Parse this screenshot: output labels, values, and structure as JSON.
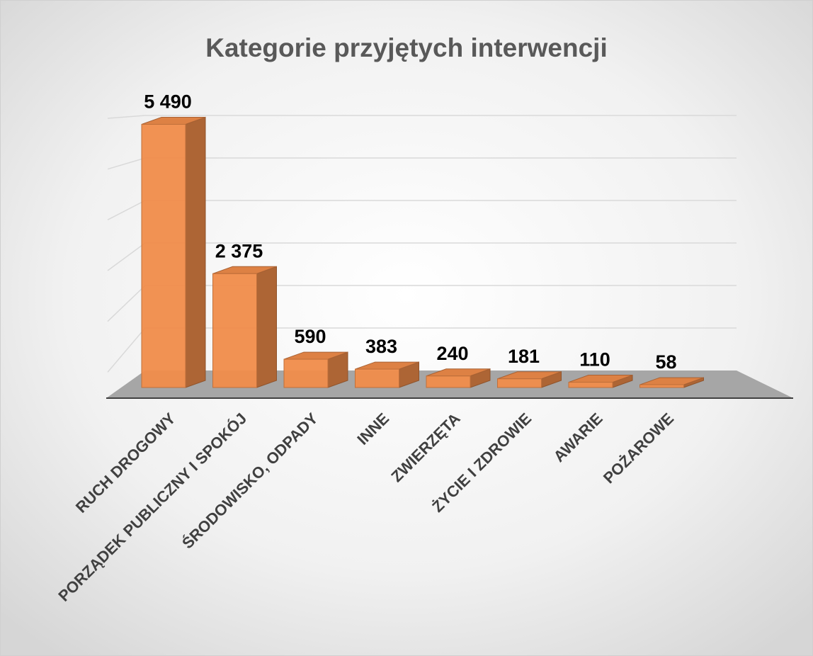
{
  "chart_data": {
    "type": "bar3d",
    "title": "Kategorie przyjętych interwencji",
    "categories": [
      "RUCH DROGOWY",
      "PORZĄDEK PUBLICZNY I SPOKÓJ",
      "ŚRODOWISKO, ODPADY",
      "INNE",
      "ZWIERZĘTA",
      "ŻYCIE I ZDROWIE",
      "AWARIE",
      "POŻAROWE"
    ],
    "values": [
      5490,
      2375,
      590,
      383,
      240,
      181,
      110,
      58
    ],
    "value_labels": [
      "5 490",
      "2 375",
      "590",
      "383",
      "240",
      "181",
      "110",
      "58"
    ],
    "color": "#f08c4a",
    "ylim": [
      0,
      6000
    ],
    "yticks": [
      0,
      1000,
      2000,
      3000,
      4000,
      5000,
      6000
    ],
    "grid": true
  }
}
